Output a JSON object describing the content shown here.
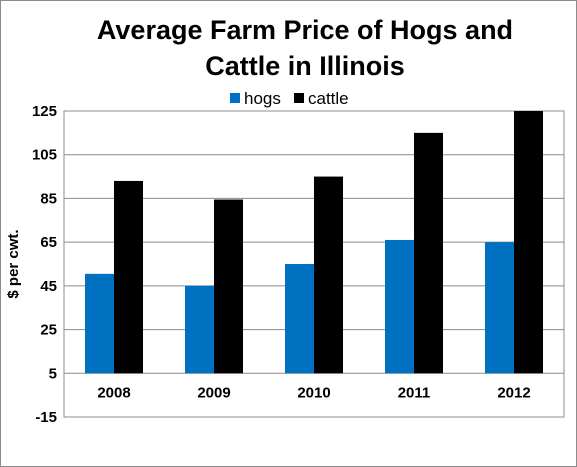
{
  "chart_data": {
    "type": "bar",
    "title_lines": [
      "Average Farm Price of Hogs and",
      "Cattle in Illinois"
    ],
    "xlabel": "",
    "ylabel": "$ per cwt.",
    "categories": [
      "2008",
      "2009",
      "2010",
      "2011",
      "2012"
    ],
    "series": [
      {
        "name": "hogs",
        "color": "#0070c0",
        "values": [
          50.5,
          45,
          55,
          66,
          65
        ]
      },
      {
        "name": "cattle",
        "color": "#000000",
        "values": [
          93,
          84.5,
          95,
          115,
          125
        ]
      }
    ],
    "ylim": [
      -15,
      125
    ],
    "y_ticks": [
      "125",
      "105",
      "85",
      "65",
      "45",
      "25",
      "5",
      "-15"
    ],
    "grid": true,
    "legend_position": "top"
  }
}
